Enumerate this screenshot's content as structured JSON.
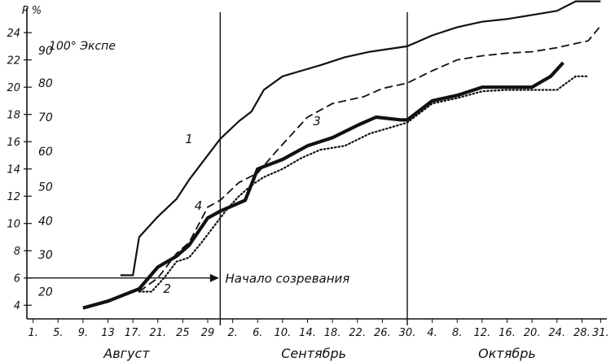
{
  "chart_data": {
    "type": "line",
    "y_axis_label": "P %",
    "y_ticks": [
      4,
      6,
      8,
      10,
      12,
      14,
      16,
      18,
      20,
      22,
      24
    ],
    "ylim": [
      3,
      25.5
    ],
    "secondary_axis": {
      "title": "100° Экспе",
      "ticks": [
        {
          "label": "20",
          "y": 5.0
        },
        {
          "label": "30",
          "y": 7.7
        },
        {
          "label": "40",
          "y": 10.2
        },
        {
          "label": "50",
          "y": 12.7
        },
        {
          "label": "60",
          "y": 15.3
        },
        {
          "label": "70",
          "y": 17.8
        },
        {
          "label": "80",
          "y": 20.3
        },
        {
          "label": "90",
          "y": 22.7
        }
      ]
    },
    "x_ticks": [
      {
        "label": "1.",
        "day": 1
      },
      {
        "label": "5.",
        "day": 5
      },
      {
        "label": "9.",
        "day": 9
      },
      {
        "label": "13",
        "day": 13
      },
      {
        "label": "17.",
        "day": 17
      },
      {
        "label": "21.",
        "day": 21
      },
      {
        "label": "25",
        "day": 25
      },
      {
        "label": "29",
        "day": 29
      },
      {
        "label": "2.",
        "day": 33
      },
      {
        "label": "6.",
        "day": 37
      },
      {
        "label": "10.",
        "day": 41
      },
      {
        "label": "14.",
        "day": 45
      },
      {
        "label": "18.",
        "day": 49
      },
      {
        "label": "22.",
        "day": 53
      },
      {
        "label": "26.",
        "day": 57
      },
      {
        "label": "30.",
        "day": 61
      },
      {
        "label": "4.",
        "day": 65
      },
      {
        "label": "8.",
        "day": 69
      },
      {
        "label": "12.",
        "day": 73
      },
      {
        "label": "16.",
        "day": 77
      },
      {
        "label": "20.",
        "day": 81
      },
      {
        "label": "24.",
        "day": 85
      },
      {
        "label": "28.",
        "day": 89
      },
      {
        "label": "31.",
        "day": 92
      }
    ],
    "xlim": [
      0,
      93
    ],
    "months": [
      {
        "label": "Август",
        "center": 16
      },
      {
        "label": "Сентябрь",
        "center": 46
      },
      {
        "label": "Октябрь",
        "center": 77
      }
    ],
    "month_separators": [
      31,
      61
    ],
    "threshold": {
      "y": 6,
      "label": "Начало созревания"
    },
    "series": [
      {
        "name": "1",
        "style": "solid-medium",
        "points": [
          [
            15,
            6.2
          ],
          [
            17,
            6.2
          ],
          [
            18,
            9.0
          ],
          [
            21,
            10.5
          ],
          [
            24,
            11.8
          ],
          [
            26,
            13.2
          ],
          [
            29,
            15.0
          ],
          [
            31,
            16.2
          ],
          [
            34,
            17.5
          ],
          [
            36,
            18.2
          ],
          [
            38,
            19.8
          ],
          [
            41,
            20.8
          ],
          [
            44,
            21.2
          ],
          [
            47,
            21.6
          ],
          [
            51,
            22.2
          ],
          [
            55,
            22.6
          ],
          [
            61,
            23.0
          ],
          [
            65,
            23.8
          ],
          [
            69,
            24.4
          ],
          [
            73,
            24.8
          ],
          [
            77,
            25.0
          ],
          [
            81,
            25.3
          ],
          [
            85,
            25.6
          ],
          [
            88,
            26.3
          ],
          [
            92,
            26.3
          ]
        ]
      },
      {
        "name": "2",
        "style": "dotted",
        "points": [
          [
            18,
            5.0
          ],
          [
            20,
            5.0
          ],
          [
            22,
            6.0
          ],
          [
            24,
            7.2
          ],
          [
            26,
            7.5
          ],
          [
            28,
            8.6
          ],
          [
            30,
            9.8
          ],
          [
            32,
            11.0
          ],
          [
            34,
            12.0
          ],
          [
            36,
            12.8
          ],
          [
            38,
            13.4
          ],
          [
            41,
            14.0
          ],
          [
            44,
            14.8
          ],
          [
            47,
            15.4
          ],
          [
            51,
            15.7
          ],
          [
            55,
            16.6
          ],
          [
            61,
            17.4
          ],
          [
            65,
            18.8
          ],
          [
            69,
            19.2
          ],
          [
            73,
            19.7
          ],
          [
            77,
            19.8
          ],
          [
            81,
            19.8
          ],
          [
            85,
            19.8
          ],
          [
            88,
            20.8
          ],
          [
            90,
            20.8
          ]
        ]
      },
      {
        "name": "3",
        "style": "dashed",
        "points": [
          [
            18,
            5.0
          ],
          [
            21,
            6.0
          ],
          [
            24,
            7.8
          ],
          [
            26,
            8.6
          ],
          [
            29,
            11.2
          ],
          [
            31,
            11.7
          ],
          [
            34,
            13.0
          ],
          [
            37,
            13.7
          ],
          [
            40,
            15.3
          ],
          [
            42,
            16.3
          ],
          [
            45,
            17.8
          ],
          [
            49,
            18.8
          ],
          [
            54,
            19.3
          ],
          [
            57,
            19.9
          ],
          [
            61,
            20.3
          ],
          [
            65,
            21.2
          ],
          [
            69,
            22.0
          ],
          [
            73,
            22.3
          ],
          [
            77,
            22.5
          ],
          [
            81,
            22.6
          ],
          [
            85,
            22.9
          ],
          [
            88,
            23.2
          ],
          [
            90,
            23.4
          ],
          [
            92,
            24.5
          ]
        ]
      },
      {
        "name": "4",
        "style": "solid-thick",
        "points": [
          [
            9,
            3.8
          ],
          [
            13,
            4.3
          ],
          [
            18,
            5.2
          ],
          [
            21,
            6.8
          ],
          [
            24,
            7.6
          ],
          [
            26,
            8.4
          ],
          [
            29,
            10.4
          ],
          [
            31,
            10.9
          ],
          [
            35,
            11.7
          ],
          [
            37,
            14.0
          ],
          [
            41,
            14.7
          ],
          [
            45,
            15.7
          ],
          [
            49,
            16.3
          ],
          [
            53,
            17.2
          ],
          [
            56,
            17.8
          ],
          [
            60,
            17.6
          ],
          [
            61,
            17.6
          ],
          [
            65,
            19.0
          ],
          [
            69,
            19.4
          ],
          [
            73,
            20.0
          ],
          [
            77,
            20.0
          ],
          [
            81,
            20.0
          ],
          [
            84,
            20.8
          ],
          [
            86,
            21.8
          ]
        ]
      }
    ]
  }
}
